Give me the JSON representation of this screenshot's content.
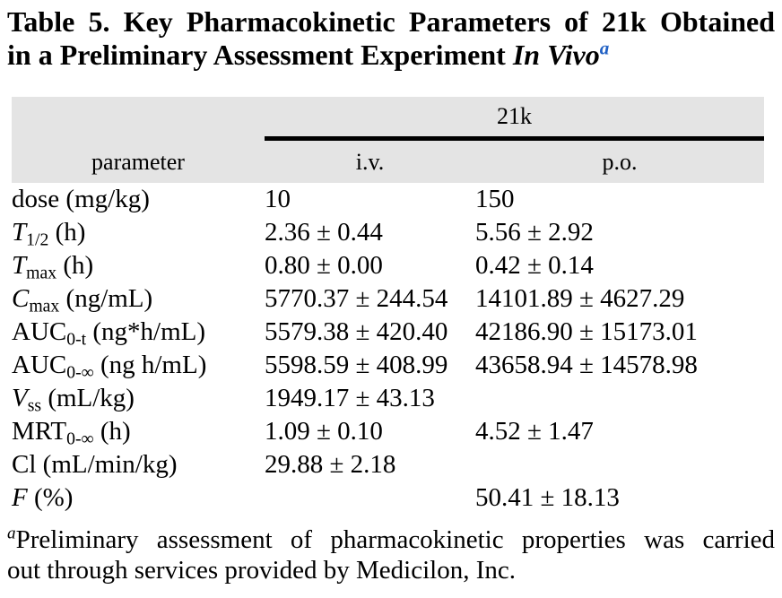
{
  "title": {
    "line1": "Table 5. Key Pharmacokinetic Parameters of 21k Obtained",
    "line2_roman": "in a Preliminary Assessment Experiment",
    "line2_italic": "In Vivo",
    "footnote_marker": "a",
    "marker_color": "#2060c4"
  },
  "table": {
    "group_header": "21k",
    "header": {
      "parameter": "parameter",
      "iv": "i.v.",
      "po": "p.o."
    },
    "header_bg": "#e4e4e4",
    "rule_color": "#000000",
    "rows": [
      {
        "main": "dose",
        "italic": false,
        "sub": "",
        "unit": "(mg/kg)",
        "iv": "10",
        "po": "150"
      },
      {
        "main": "T",
        "italic": true,
        "sub": "1/2",
        "unit": "(h)",
        "iv": "2.36 ± 0.44",
        "po": "5.56 ± 2.92"
      },
      {
        "main": "T",
        "italic": true,
        "sub": "max",
        "unit": "(h)",
        "iv": "0.80 ± 0.00",
        "po": "0.42 ± 0.14"
      },
      {
        "main": "C",
        "italic": true,
        "sub": "max",
        "unit": "(ng/mL)",
        "iv": "5770.37 ± 244.54",
        "po": "14101.89 ± 4627.29"
      },
      {
        "main": "AUC",
        "italic": false,
        "sub": "0-t",
        "unit": "(ng*h/mL)",
        "iv": "5579.38 ± 420.40",
        "po": "42186.90 ± 15173.01"
      },
      {
        "main": "AUC",
        "italic": false,
        "sub": "0-∞",
        "unit": "(ng h/mL)",
        "iv": "5598.59 ± 408.99",
        "po": "43658.94 ± 14578.98"
      },
      {
        "main": "V",
        "italic": true,
        "sub": "ss",
        "unit": "(mL/kg)",
        "iv": "1949.17 ± 43.13",
        "po": ""
      },
      {
        "main": "MRT",
        "italic": false,
        "sub": "0-∞",
        "unit": "(h)",
        "iv": "1.09 ± 0.10",
        "po": "4.52 ± 1.47"
      },
      {
        "main": "Cl",
        "italic": false,
        "sub": "",
        "unit": "(mL/min/kg)",
        "iv": "29.88 ± 2.18",
        "po": ""
      },
      {
        "main": "F",
        "italic": true,
        "sub": "",
        "unit": "(%)",
        "iv": "",
        "po": "50.41 ± 18.13"
      }
    ]
  },
  "footnote": {
    "marker": "a",
    "line1": "Preliminary assessment of pharmacokinetic properties was carried",
    "line2": "out through services provided by Medicilon, Inc."
  }
}
